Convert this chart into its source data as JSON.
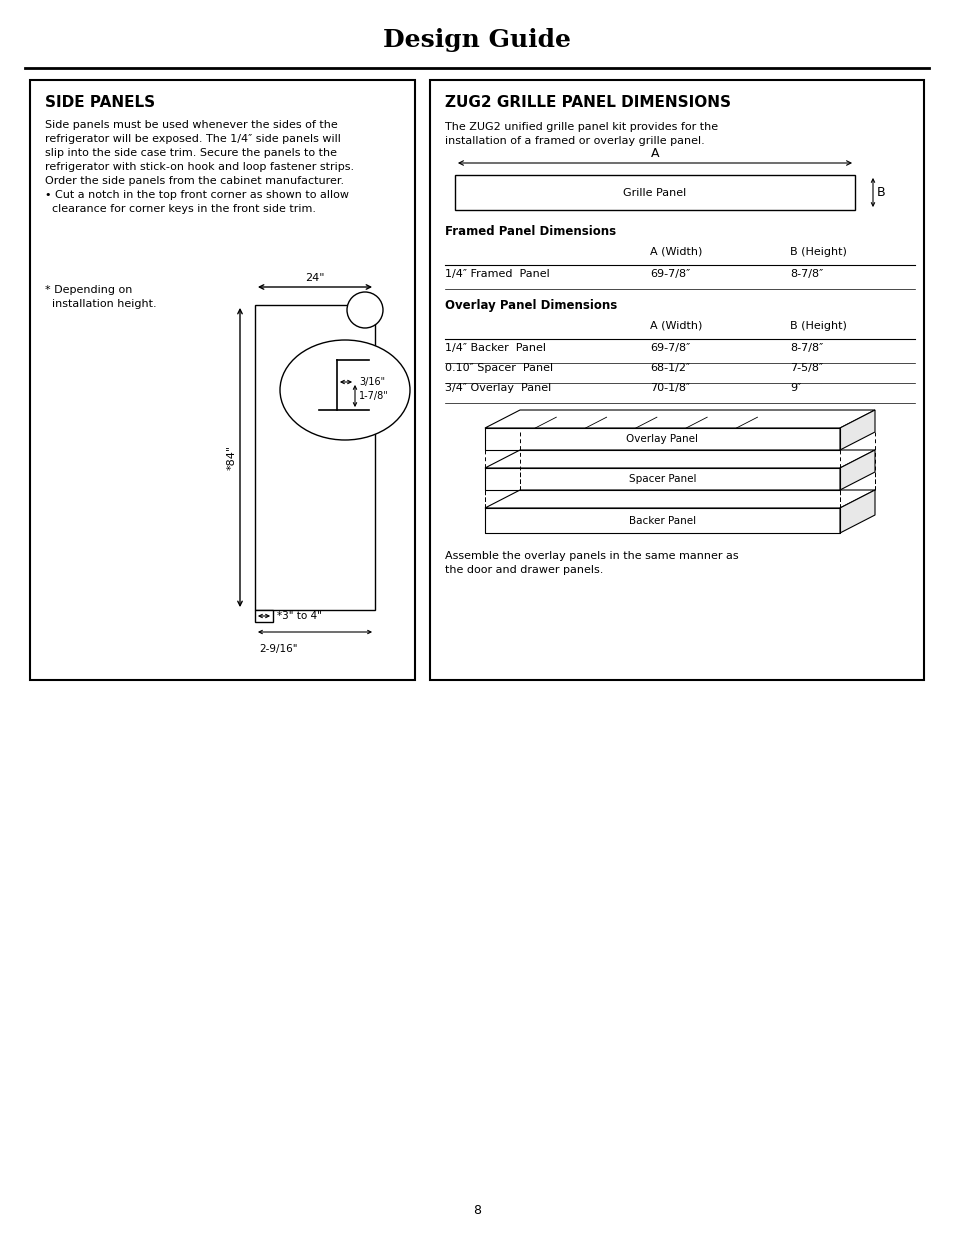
{
  "title": "Design Guide",
  "page_number": "8",
  "bg_color": "#ffffff",
  "left_panel": {
    "heading": "SIDE PANELS",
    "body_text": "Side panels must be used whenever the sides of the\nrefrigerator will be exposed. The 1/4″ side panels will\nslip into the side case trim. Secure the panels to the\nrefrigerator with stick-on hook and loop fastener strips.\nOrder the side panels from the cabinet manufacturer.\n• Cut a notch in the top front corner as shown to allow\n  clearance for corner keys in the front side trim.",
    "note": "* Depending on\n  installation height.",
    "dim_24": "24\"",
    "dim_84": "*84\"",
    "dim_3to4": "*3\" to 4\"",
    "dim_2916": "2-9/16\"",
    "dim_316": "3/16\"",
    "dim_178": "1-7/8\""
  },
  "right_panel": {
    "heading": "ZUG2 GRILLE PANEL DIMENSIONS",
    "intro": "The ZUG2 unified grille panel kit provides for the\ninstallation of a framed or overlay grille panel.",
    "grille_label": "Grille Panel",
    "dim_A": "A",
    "dim_B": "B",
    "framed_title": "Framed Panel Dimensions",
    "framed_headers": [
      "",
      "A (Width)",
      "B (Height)"
    ],
    "framed_rows": [
      [
        "1/4″ Framed  Panel",
        "69-7/8″",
        "8-7/8″"
      ]
    ],
    "overlay_title": "Overlay Panel Dimensions",
    "overlay_headers": [
      "",
      "A (Width)",
      "B (Height)"
    ],
    "overlay_rows": [
      [
        "1/4″ Backer  Panel",
        "69-7/8″",
        "8-7/8″"
      ],
      [
        "0.10″ Spacer  Panel",
        "68-1/2″",
        "7-5/8″"
      ],
      [
        "3/4″ Overlay  Panel",
        "70-1/8″",
        "9″"
      ]
    ],
    "overlay_label": "Overlay Panel",
    "spacer_label": "Spacer Panel",
    "backer_label": "Backer Panel",
    "assemble_text": "Assemble the overlay panels in the same manner as\nthe door and drawer panels."
  }
}
